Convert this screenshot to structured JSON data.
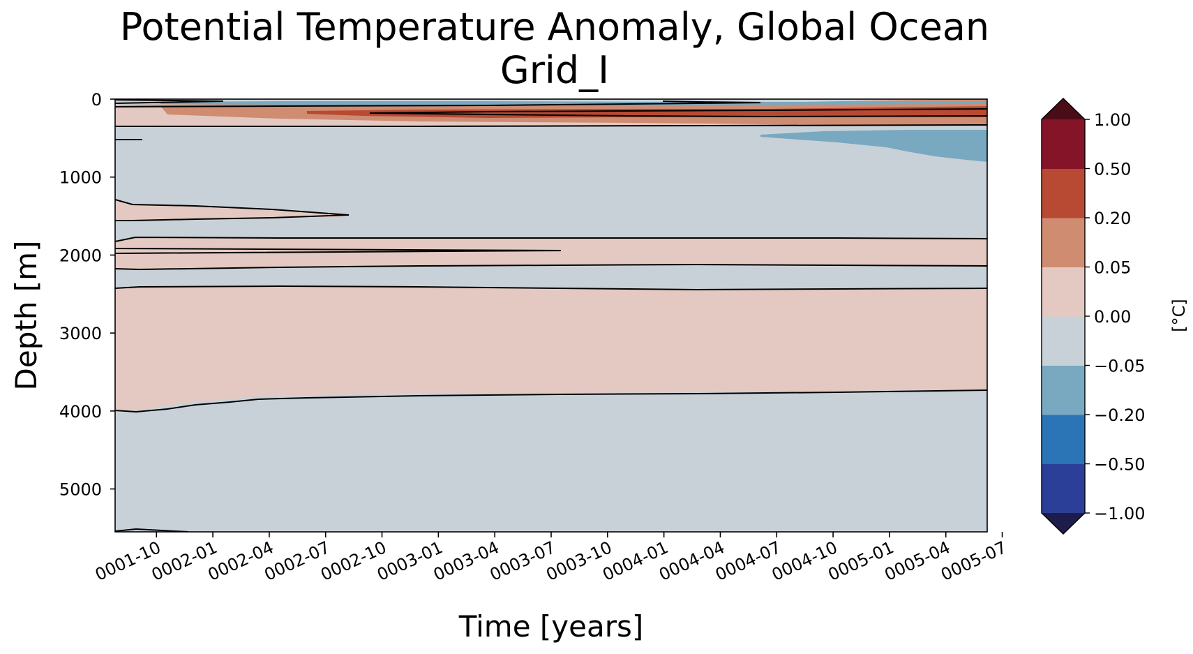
{
  "chart_data": {
    "type": "heatmap",
    "subtype": "filled-contour",
    "title": "Potential Temperature Anomaly, Global Ocean",
    "subtitle": "Grid_I",
    "xlabel": "Time [years]",
    "ylabel": "Depth [m]",
    "x_tick_labels": [
      "0001-10",
      "0002-01",
      "0002-04",
      "0002-07",
      "0002-10",
      "0003-01",
      "0003-04",
      "0003-07",
      "0003-10",
      "0004-01",
      "0004-04",
      "0004-07",
      "0004-10",
      "0005-01",
      "0005-04",
      "0005-07"
    ],
    "x_range_months": [
      7.8,
      54.2
    ],
    "x_tick_months": [
      10,
      13,
      16,
      19,
      22,
      25,
      28,
      31,
      34,
      37,
      40,
      43,
      46,
      49,
      52,
      55
    ],
    "y_tick_values": [
      0,
      1000,
      2000,
      3000,
      4000,
      5000
    ],
    "y_tick_labels": [
      "0",
      "1000",
      "2000",
      "3000",
      "4000",
      "5000"
    ],
    "ylim": [
      5550,
      0
    ],
    "y_inverted": true,
    "colorbar": {
      "label": "[°C]",
      "levels": [
        -1.0,
        -0.5,
        -0.2,
        -0.05,
        0.0,
        0.05,
        0.2,
        0.5,
        1.0
      ],
      "tick_labels": [
        "−1.00",
        "−0.50",
        "−0.20",
        "−0.05",
        "0.00",
        "0.05",
        "0.20",
        "0.50",
        "1.00"
      ],
      "colors": [
        "#2c3f98",
        "#2b74b6",
        "#78a9c0",
        "#c9d1d8",
        "#e3c9c2",
        "#cf8c71",
        "#b84a33",
        "#861429"
      ],
      "extend_low_color": "#1e1c4a",
      "extend_high_color": "#4a0d17"
    },
    "background_level": "-0.05 to 0.00",
    "bands": [
      {
        "level": "0.00 to 0.05",
        "top": 170,
        "bottom": 340
      },
      {
        "level": "0.00 to 0.05",
        "top": 1280,
        "bottom": 1540
      },
      {
        "level": "0.00 to 0.05",
        "top": 1780,
        "bottom": 2140
      },
      {
        "level": "0.00 to 0.05",
        "top": 2410,
        "bottom": 3750
      },
      {
        "level": "0.05 to 0.20",
        "top": 80,
        "bottom": 330
      },
      {
        "level": "0.20 to 0.50",
        "top": 120,
        "bottom": 240
      },
      {
        "level": "-0.20 to -0.05",
        "top": 400,
        "bottom": 800
      }
    ]
  }
}
